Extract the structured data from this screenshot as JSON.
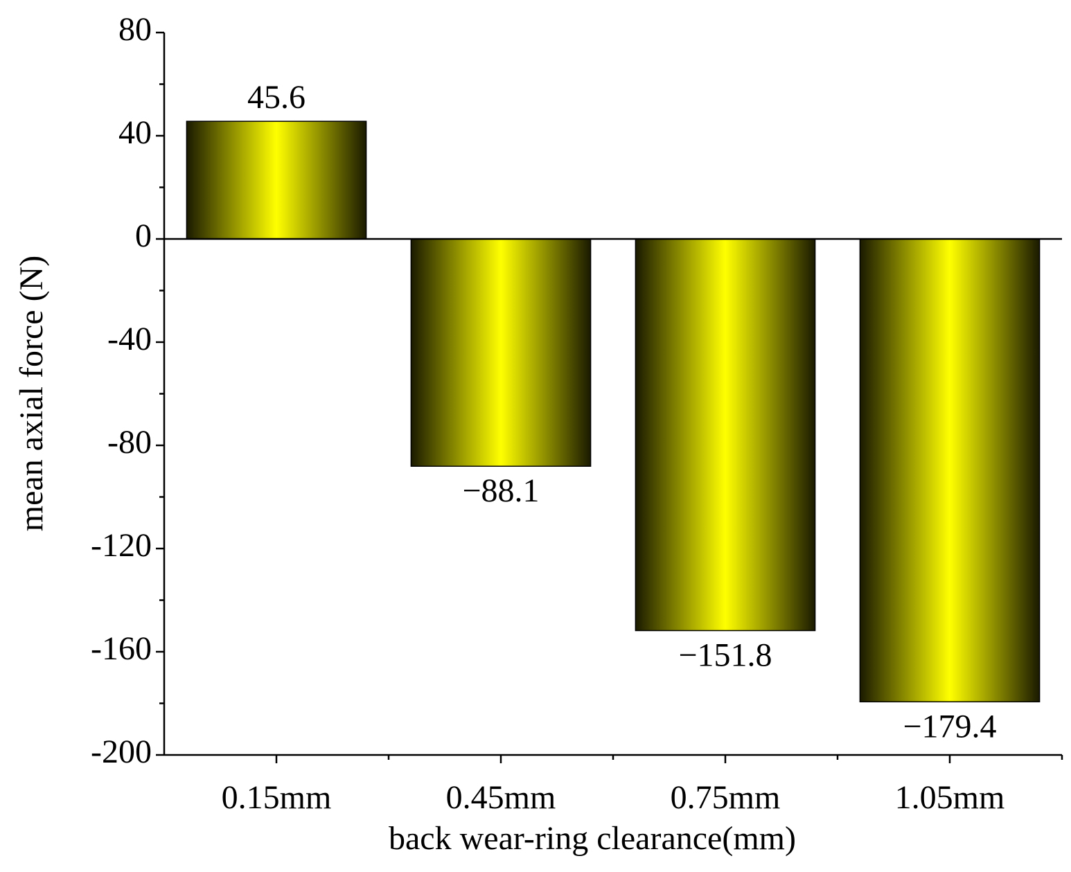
{
  "chart_data": {
    "type": "bar",
    "x_label": "back wear-ring clearance(mm)",
    "y_label": "mean axial force (N)",
    "categories": [
      "0.15mm",
      "0.45mm",
      "0.75mm",
      "1.05mm"
    ],
    "values": [
      45.6,
      -88.1,
      -151.8,
      -179.4
    ],
    "value_labels": [
      "45.6",
      "−88.1",
      "−151.8",
      "−179.4"
    ],
    "color": "#ffff00",
    "ylim": [
      -200,
      80
    ],
    "yticks": [
      -200,
      -160,
      -120,
      -80,
      -40,
      0,
      40,
      80
    ],
    "grid": false
  }
}
